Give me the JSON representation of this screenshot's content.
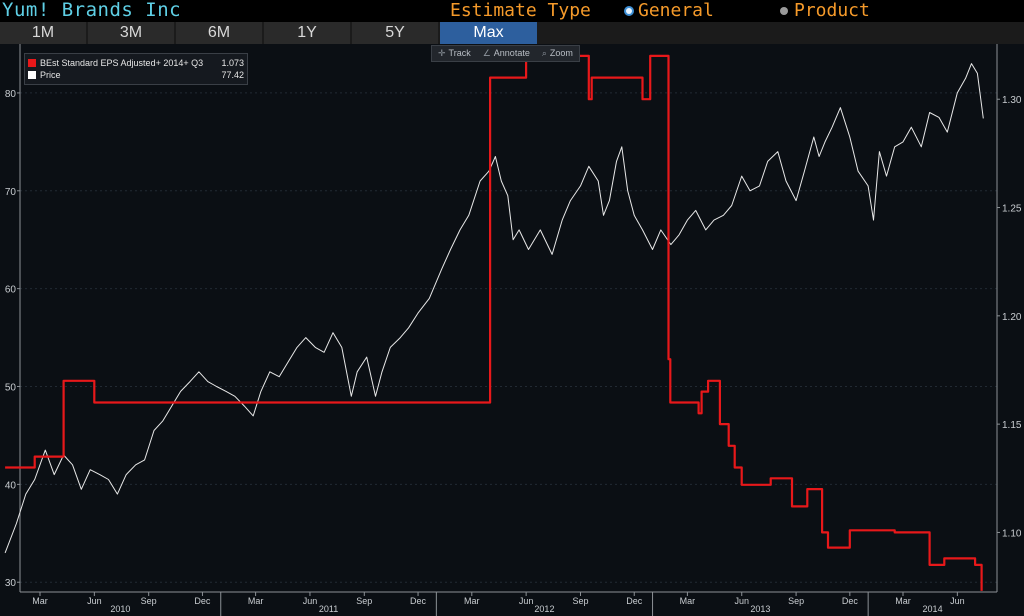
{
  "header": {
    "company": "Yum! Brands Inc",
    "estimate_type_label": "Estimate Type",
    "option_general": "General",
    "option_product": "Product"
  },
  "tabs": [
    {
      "label": "1M",
      "active": false
    },
    {
      "label": "3M",
      "active": false
    },
    {
      "label": "6M",
      "active": false
    },
    {
      "label": "1Y",
      "active": false
    },
    {
      "label": "5Y",
      "active": false
    },
    {
      "label": "Max",
      "active": true
    }
  ],
  "toolbar": {
    "track": "Track",
    "annotate": "Annotate",
    "zoom": "Zoom"
  },
  "legend": {
    "eps_label": "BEst Standard EPS Adjusted+ 2014+ Q3",
    "eps_value": "1.073",
    "price_label": "Price",
    "price_value": "77.42"
  },
  "colors": {
    "eps": "#e8181a",
    "price": "#e8e8e8",
    "accent_tab": "#2d5f9e",
    "company_text": "#5fd0e6",
    "orange_text": "#f59a2a"
  },
  "chart_data": {
    "type": "line",
    "x_tick_labels": [
      "Mar",
      "Jun",
      "Sep",
      "Dec",
      "Mar",
      "Jun",
      "Sep",
      "Dec",
      "Mar",
      "Jun",
      "Sep",
      "Dec",
      "Mar",
      "Jun",
      "Sep",
      "Dec",
      "Mar",
      "Jun"
    ],
    "x_tick_dates": [
      "2010-03-01",
      "2010-06-01",
      "2010-09-01",
      "2010-12-01",
      "2011-03-01",
      "2011-06-01",
      "2011-09-01",
      "2011-12-01",
      "2012-03-01",
      "2012-06-01",
      "2012-09-01",
      "2012-12-01",
      "2013-03-01",
      "2013-06-01",
      "2013-09-01",
      "2013-12-01",
      "2014-03-01",
      "2014-06-01"
    ],
    "year_labels": [
      "2010",
      "2011",
      "2012",
      "2013",
      "2014"
    ],
    "left_axis": {
      "ticks": [
        30,
        40,
        50,
        60,
        70,
        80
      ],
      "range": [
        29,
        85
      ]
    },
    "right_axis": {
      "ticks": [
        1.1,
        1.15,
        1.2,
        1.25,
        1.3
      ],
      "range": [
        1.0725,
        1.3255
      ]
    },
    "series": [
      {
        "name": "Price",
        "axis": "left",
        "points": [
          [
            "2010-01-01",
            33.0
          ],
          [
            "2010-01-20",
            36.0
          ],
          [
            "2010-02-05",
            39.0
          ],
          [
            "2010-02-20",
            40.5
          ],
          [
            "2010-03-10",
            43.5
          ],
          [
            "2010-03-25",
            41.0
          ],
          [
            "2010-04-10",
            43.0
          ],
          [
            "2010-04-25",
            42.0
          ],
          [
            "2010-05-10",
            39.5
          ],
          [
            "2010-05-25",
            41.5
          ],
          [
            "2010-06-10",
            41.0
          ],
          [
            "2010-06-25",
            40.5
          ],
          [
            "2010-07-10",
            39.0
          ],
          [
            "2010-07-25",
            41.0
          ],
          [
            "2010-08-10",
            42.0
          ],
          [
            "2010-08-25",
            42.5
          ],
          [
            "2010-09-10",
            45.5
          ],
          [
            "2010-09-25",
            46.5
          ],
          [
            "2010-10-10",
            48.0
          ],
          [
            "2010-10-25",
            49.5
          ],
          [
            "2010-11-10",
            50.5
          ],
          [
            "2010-11-25",
            51.5
          ],
          [
            "2010-12-10",
            50.5
          ],
          [
            "2010-12-25",
            50.0
          ],
          [
            "2011-01-10",
            49.5
          ],
          [
            "2011-01-25",
            49.0
          ],
          [
            "2011-02-10",
            48.0
          ],
          [
            "2011-02-25",
            47.0
          ],
          [
            "2011-03-10",
            49.5
          ],
          [
            "2011-03-25",
            51.5
          ],
          [
            "2011-04-10",
            51.0
          ],
          [
            "2011-04-25",
            52.5
          ],
          [
            "2011-05-10",
            54.0
          ],
          [
            "2011-05-25",
            55.0
          ],
          [
            "2011-06-10",
            54.0
          ],
          [
            "2011-06-25",
            53.5
          ],
          [
            "2011-07-10",
            55.5
          ],
          [
            "2011-07-25",
            54.0
          ],
          [
            "2011-08-10",
            49.0
          ],
          [
            "2011-08-20",
            51.5
          ],
          [
            "2011-09-05",
            53.0
          ],
          [
            "2011-09-20",
            49.0
          ],
          [
            "2011-10-01",
            51.5
          ],
          [
            "2011-10-15",
            54.0
          ],
          [
            "2011-11-01",
            55.0
          ],
          [
            "2011-11-15",
            56.0
          ],
          [
            "2011-12-01",
            57.5
          ],
          [
            "2011-12-20",
            59.0
          ],
          [
            "2012-01-10",
            62.0
          ],
          [
            "2012-01-25",
            64.0
          ],
          [
            "2012-02-10",
            66.0
          ],
          [
            "2012-02-25",
            67.5
          ],
          [
            "2012-03-15",
            71.0
          ],
          [
            "2012-03-30",
            72.0
          ],
          [
            "2012-04-10",
            73.5
          ],
          [
            "2012-04-20",
            71.0
          ],
          [
            "2012-05-01",
            69.5
          ],
          [
            "2012-05-10",
            65.0
          ],
          [
            "2012-05-20",
            66.0
          ],
          [
            "2012-06-05",
            64.0
          ],
          [
            "2012-06-25",
            66.0
          ],
          [
            "2012-07-15",
            63.5
          ],
          [
            "2012-08-01",
            67.0
          ],
          [
            "2012-08-15",
            69.0
          ],
          [
            "2012-09-01",
            70.5
          ],
          [
            "2012-09-15",
            72.5
          ],
          [
            "2012-10-01",
            71.0
          ],
          [
            "2012-10-10",
            67.5
          ],
          [
            "2012-10-20",
            69.0
          ],
          [
            "2012-11-01",
            73.0
          ],
          [
            "2012-11-10",
            74.5
          ],
          [
            "2012-11-20",
            70.0
          ],
          [
            "2012-12-01",
            67.5
          ],
          [
            "2012-12-15",
            66.0
          ],
          [
            "2013-01-01",
            64.0
          ],
          [
            "2013-01-15",
            66.0
          ],
          [
            "2013-02-01",
            64.5
          ],
          [
            "2013-02-15",
            65.5
          ],
          [
            "2013-03-01",
            67.0
          ],
          [
            "2013-03-15",
            68.0
          ],
          [
            "2013-04-01",
            66.0
          ],
          [
            "2013-04-15",
            67.0
          ],
          [
            "2013-05-01",
            67.5
          ],
          [
            "2013-05-15",
            68.5
          ],
          [
            "2013-06-01",
            71.5
          ],
          [
            "2013-06-15",
            70.0
          ],
          [
            "2013-07-01",
            70.5
          ],
          [
            "2013-07-15",
            73.0
          ],
          [
            "2013-08-01",
            74.0
          ],
          [
            "2013-08-15",
            71.0
          ],
          [
            "2013-09-01",
            69.0
          ],
          [
            "2013-09-15",
            72.0
          ],
          [
            "2013-10-01",
            75.5
          ],
          [
            "2013-10-10",
            73.5
          ],
          [
            "2013-10-20",
            75.0
          ],
          [
            "2013-11-01",
            76.5
          ],
          [
            "2013-11-15",
            78.5
          ],
          [
            "2013-12-01",
            75.5
          ],
          [
            "2013-12-15",
            72.0
          ],
          [
            "2014-01-01",
            70.5
          ],
          [
            "2014-01-10",
            67.0
          ],
          [
            "2014-01-20",
            74.0
          ],
          [
            "2014-02-01",
            71.5
          ],
          [
            "2014-02-15",
            74.5
          ],
          [
            "2014-03-01",
            75.0
          ],
          [
            "2014-03-15",
            76.5
          ],
          [
            "2014-04-01",
            74.5
          ],
          [
            "2014-04-15",
            78.0
          ],
          [
            "2014-05-01",
            77.5
          ],
          [
            "2014-05-15",
            76.0
          ],
          [
            "2014-06-01",
            80.0
          ],
          [
            "2014-06-15",
            81.5
          ],
          [
            "2014-06-25",
            83.0
          ],
          [
            "2014-07-05",
            82.0
          ],
          [
            "2014-07-15",
            77.4
          ]
        ]
      },
      {
        "name": "BEst Standard EPS Adjusted+ 2014+ Q3",
        "axis": "right",
        "step": true,
        "points": [
          [
            "2010-01-01",
            1.13
          ],
          [
            "2010-02-20",
            1.13
          ],
          [
            "2010-02-20",
            1.135
          ],
          [
            "2010-04-10",
            1.135
          ],
          [
            "2010-04-10",
            1.17
          ],
          [
            "2010-06-01",
            1.17
          ],
          [
            "2010-06-01",
            1.16
          ],
          [
            "2012-04-01",
            1.16
          ],
          [
            "2012-04-01",
            1.31
          ],
          [
            "2012-06-01",
            1.31
          ],
          [
            "2012-06-01",
            1.32
          ],
          [
            "2012-09-15",
            1.32
          ],
          [
            "2012-09-15",
            1.3
          ],
          [
            "2012-09-20",
            1.3
          ],
          [
            "2012-09-20",
            1.31
          ],
          [
            "2012-12-15",
            1.31
          ],
          [
            "2012-12-15",
            1.3
          ],
          [
            "2012-12-28",
            1.3
          ],
          [
            "2012-12-28",
            1.32
          ],
          [
            "2013-01-28",
            1.32
          ],
          [
            "2013-01-28",
            1.18
          ],
          [
            "2013-01-31",
            1.18
          ],
          [
            "2013-01-31",
            1.16
          ],
          [
            "2013-03-20",
            1.16
          ],
          [
            "2013-03-20",
            1.155
          ],
          [
            "2013-03-25",
            1.155
          ],
          [
            "2013-03-25",
            1.165
          ],
          [
            "2013-04-05",
            1.165
          ],
          [
            "2013-04-05",
            1.17
          ],
          [
            "2013-04-25",
            1.17
          ],
          [
            "2013-04-25",
            1.15
          ],
          [
            "2013-05-10",
            1.15
          ],
          [
            "2013-05-10",
            1.14
          ],
          [
            "2013-05-20",
            1.14
          ],
          [
            "2013-05-20",
            1.13
          ],
          [
            "2013-06-01",
            1.13
          ],
          [
            "2013-06-01",
            1.122
          ],
          [
            "2013-07-20",
            1.122
          ],
          [
            "2013-07-20",
            1.125
          ],
          [
            "2013-08-25",
            1.125
          ],
          [
            "2013-08-25",
            1.112
          ],
          [
            "2013-09-20",
            1.112
          ],
          [
            "2013-09-20",
            1.12
          ],
          [
            "2013-10-15",
            1.12
          ],
          [
            "2013-10-15",
            1.1
          ],
          [
            "2013-10-25",
            1.1
          ],
          [
            "2013-10-25",
            1.093
          ],
          [
            "2013-12-01",
            1.093
          ],
          [
            "2013-12-01",
            1.101
          ],
          [
            "2014-02-15",
            1.101
          ],
          [
            "2014-02-15",
            1.1
          ],
          [
            "2014-04-15",
            1.1
          ],
          [
            "2014-04-15",
            1.085
          ],
          [
            "2014-05-10",
            1.085
          ],
          [
            "2014-05-10",
            1.088
          ],
          [
            "2014-07-01",
            1.088
          ],
          [
            "2014-07-01",
            1.085
          ],
          [
            "2014-07-12",
            1.085
          ],
          [
            "2014-07-12",
            1.073
          ]
        ]
      }
    ],
    "grid": true
  }
}
